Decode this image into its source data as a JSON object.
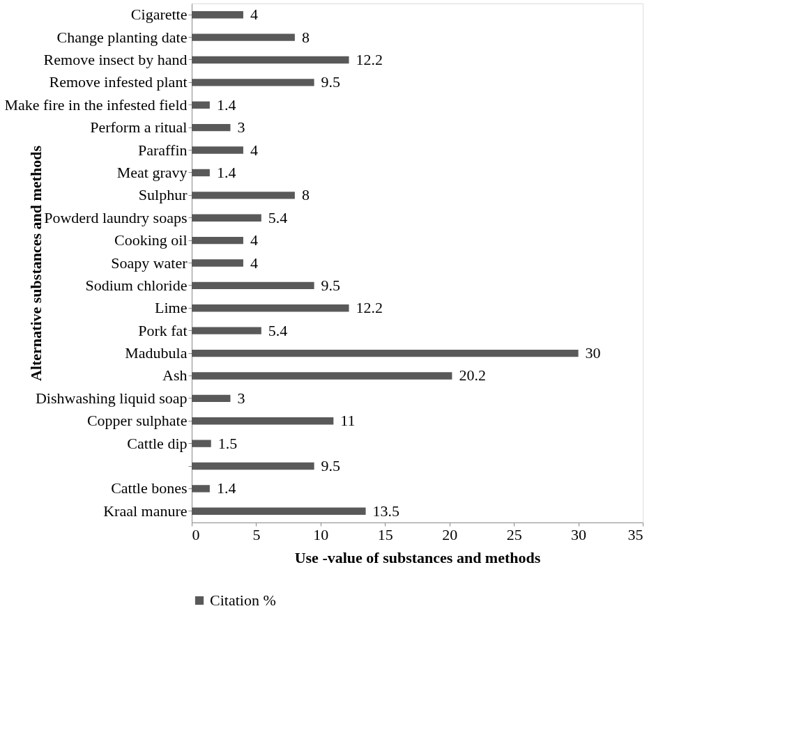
{
  "chart_data": {
    "type": "bar",
    "orientation": "horizontal",
    "categories": [
      "Cigarette ",
      "Change planting date",
      "Remove insect by hand",
      "Remove infested plant",
      "Make fire in the infested field",
      "Perform a ritual",
      "Paraffin",
      "Meat gravy",
      "Sulphur",
      "Powderd laundry soaps",
      "Cooking oil",
      "Soapy water",
      "Sodium chloride",
      "Lime ",
      "Pork fat",
      "Madubula ",
      "Ash",
      "Dishwashing liquid soap",
      "Copper sulphate",
      "Cattle dip",
      null,
      "Cattle bones",
      "Kraal manure "
    ],
    "series": [
      {
        "name": "Citation %",
        "color": "#595959",
        "values": [
          4,
          8,
          12.2,
          9.5,
          1.4,
          3,
          4,
          1.4,
          8,
          5.4,
          4,
          4,
          9.5,
          12.2,
          5.4,
          30,
          20.2,
          3,
          11,
          1.5,
          9.5,
          1.4,
          13.5
        ]
      }
    ],
    "xlim": [
      0,
      35
    ],
    "xticks": [
      0,
      5,
      10,
      15,
      20,
      25,
      30,
      35
    ],
    "xlabel": "Use -value of substances and methods",
    "ylabel": "Alternative substances and methods",
    "data_labels": true,
    "grid": false,
    "legend": "bottom"
  }
}
